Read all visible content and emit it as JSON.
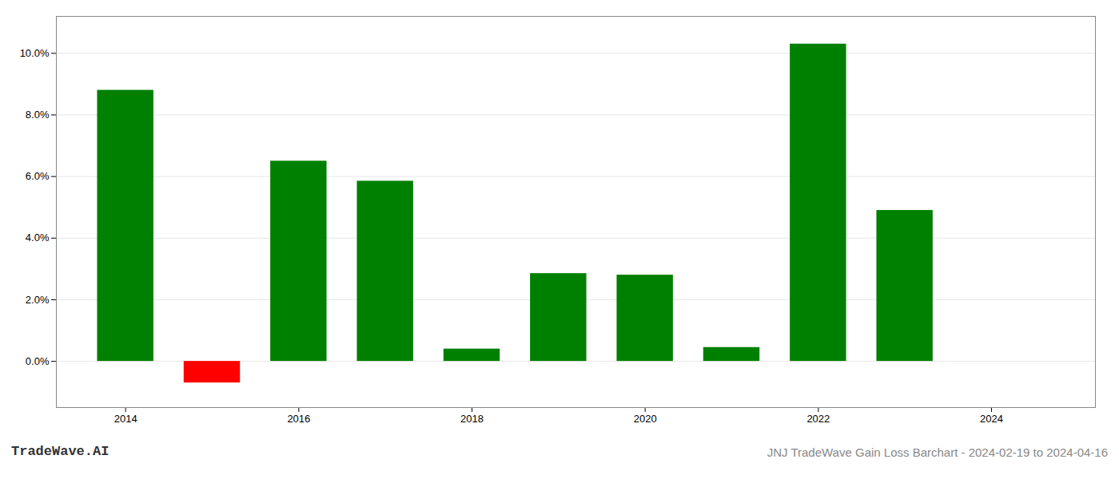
{
  "chart_data": {
    "type": "bar",
    "title": "JNJ TradeWave Gain Loss Barchart - 2024-02-19 to 2024-04-16",
    "annotations": [
      "TradeWave.AI"
    ],
    "x": [
      2014,
      2015,
      2016,
      2017,
      2018,
      2019,
      2020,
      2021,
      2022,
      2023
    ],
    "values": [
      0.088,
      -0.007,
      0.065,
      0.0585,
      0.004,
      0.0285,
      0.028,
      0.0045,
      0.103,
      0.049
    ],
    "colors": [
      "#008000",
      "#ff0000",
      "#008000",
      "#008000",
      "#008000",
      "#008000",
      "#008000",
      "#008000",
      "#008000",
      "#008000"
    ],
    "xlim": [
      2013.2,
      2025.2
    ],
    "xticks": [
      2014,
      2016,
      2018,
      2020,
      2022,
      2024
    ],
    "ylim": [
      -0.015,
      0.112
    ],
    "yticks": [
      {
        "value": 0.0,
        "label": "0.0%"
      },
      {
        "value": 0.02,
        "label": "2.0%"
      },
      {
        "value": 0.04,
        "label": "4.0%"
      },
      {
        "value": 0.06,
        "label": "6.0%"
      },
      {
        "value": 0.08,
        "label": "8.0%"
      },
      {
        "value": 0.1,
        "label": "10.0%"
      }
    ],
    "grid": true
  }
}
